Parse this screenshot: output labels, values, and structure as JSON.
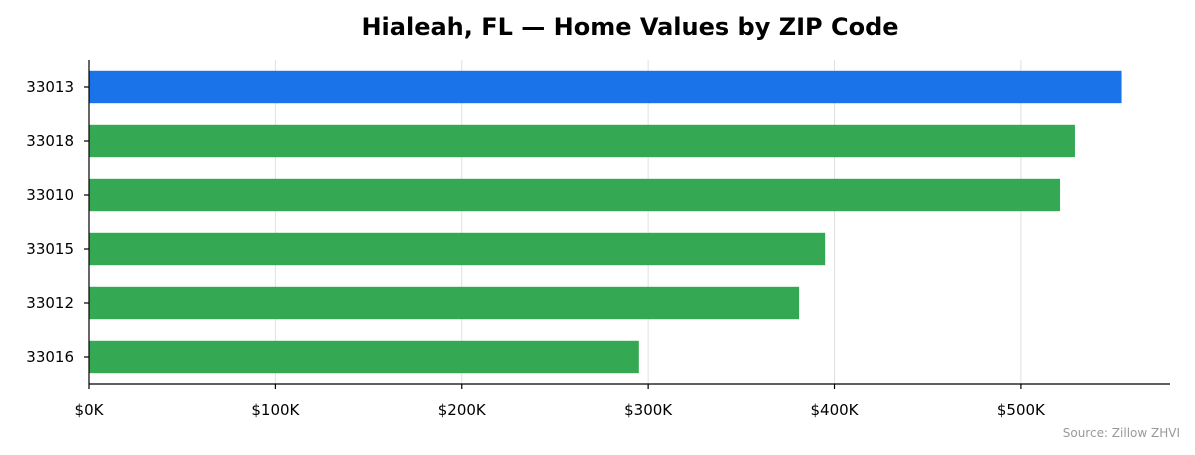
{
  "chart_data": {
    "type": "bar",
    "orientation": "horizontal",
    "title": "Hialeah, FL — Home Values by ZIP Code",
    "xlabel": "",
    "ylabel": "",
    "categories": [
      "33013",
      "33018",
      "33010",
      "33015",
      "33012",
      "33016"
    ],
    "values": [
      554000,
      529000,
      521000,
      395000,
      381000,
      295000
    ],
    "highlight_category": "33013",
    "colors": {
      "highlight": "#1a73e8",
      "default": "#34a853"
    },
    "xlim": [
      0,
      580000
    ],
    "xticks": [
      0,
      100000,
      200000,
      300000,
      400000,
      500000
    ],
    "xtick_labels": [
      "$0K",
      "$100K",
      "$200K",
      "$300K",
      "$400K",
      "$500K"
    ],
    "grid": "vertical",
    "legend": "none"
  },
  "source": "Source: Zillow ZHVI"
}
